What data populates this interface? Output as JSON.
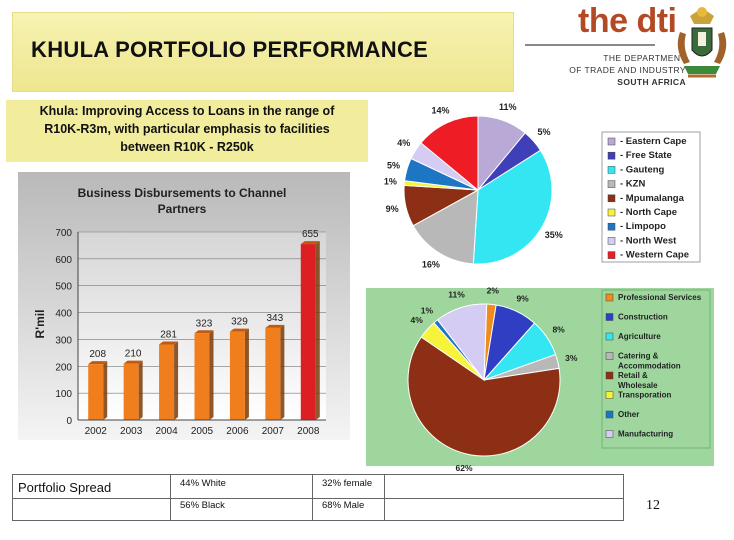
{
  "slide": {
    "title": "KHULA PORTFOLIO  PERFORMANCE",
    "page_number": "12"
  },
  "logo": {
    "brand": "the dti",
    "dept_line1": "THE DEPARTMENT",
    "dept_line2": "OF TRADE AND INDUSTRY",
    "dept_line3": "SOUTH AFRICA"
  },
  "subtitle": {
    "line1": "Khula: Improving Access to Loans in the range of",
    "line2": "R10K-R3m, with particular emphasis to facilities",
    "line3": "between R10K - R250k"
  },
  "chart_data": [
    {
      "type": "bar",
      "title": "Business Disbursements to Channel Partners",
      "ylabel": "R'mil",
      "xlabel": "",
      "categories": [
        "2002",
        "2003",
        "2004",
        "2005",
        "2006",
        "2007",
        "2008"
      ],
      "values": [
        208,
        210,
        281,
        323,
        329,
        343,
        655
      ],
      "value_labels": [
        "208",
        "210",
        "281",
        "323",
        "329",
        "343",
        "655"
      ],
      "ylim": [
        0,
        700
      ],
      "yticks": [
        "0",
        "100",
        "200",
        "300",
        "400",
        "500",
        "600",
        "700"
      ],
      "colors": {
        "bar": "#f07e1c",
        "highlight": "#dd1f22"
      }
    },
    {
      "type": "pie",
      "title": "",
      "labels": [
        "Eastern Cape",
        "Free State",
        "Gauteng",
        "KZN",
        "Mpumalanga",
        "North Cape",
        "Limpopo",
        "North West",
        "Western Cape"
      ],
      "legend": [
        "- Eastern Cape",
        "- Free State",
        "- Gauteng",
        "- KZN",
        "- Mpumalanga",
        "- North Cape",
        "- Limpopo",
        "- North West",
        "- Western Cape"
      ],
      "values": [
        11,
        5,
        35,
        16,
        9,
        1,
        5,
        4,
        14
      ],
      "value_labels": [
        "11%",
        "5%",
        "35%",
        "16%",
        "9%",
        "1%",
        "5%",
        "4%",
        "14%"
      ],
      "colors": [
        "#b9a9d6",
        "#3f3fb8",
        "#33e6f2",
        "#b8b8b8",
        "#8c2f14",
        "#f7f23a",
        "#1d76c4",
        "#d4ccf2",
        "#ee1c25"
      ],
      "legend_position": "right"
    },
    {
      "type": "pie",
      "title": "",
      "labels": [
        "Professional Services",
        "Construction",
        "Agriculture",
        "Catering & Accommodation",
        "Retail & Wholesale",
        "Transporation",
        "Other",
        "Manufacturing"
      ],
      "legend": [
        "Professional Services",
        "Construction",
        "Agriculture",
        "Catering & Accommodation",
        "Retail & Wholesale",
        "Transporation",
        "Other",
        "Manufacturing"
      ],
      "values": [
        2,
        9,
        8,
        3,
        62,
        4,
        1,
        11
      ],
      "value_labels": [
        "2%",
        "9%",
        "8%",
        "3%",
        "62%",
        "4%",
        "1%",
        "11%"
      ],
      "colors": [
        "#f08c1e",
        "#2f3ec2",
        "#33e6f2",
        "#b8b8b8",
        "#8c2f14",
        "#f7f23a",
        "#1d76c4",
        "#d4ccf2"
      ],
      "legend_position": "right"
    }
  ],
  "spread": {
    "label": "Portfolio Spread",
    "row1": [
      "44% White",
      "32% female"
    ],
    "row2": [
      "56% Black",
      "68% Male"
    ]
  }
}
